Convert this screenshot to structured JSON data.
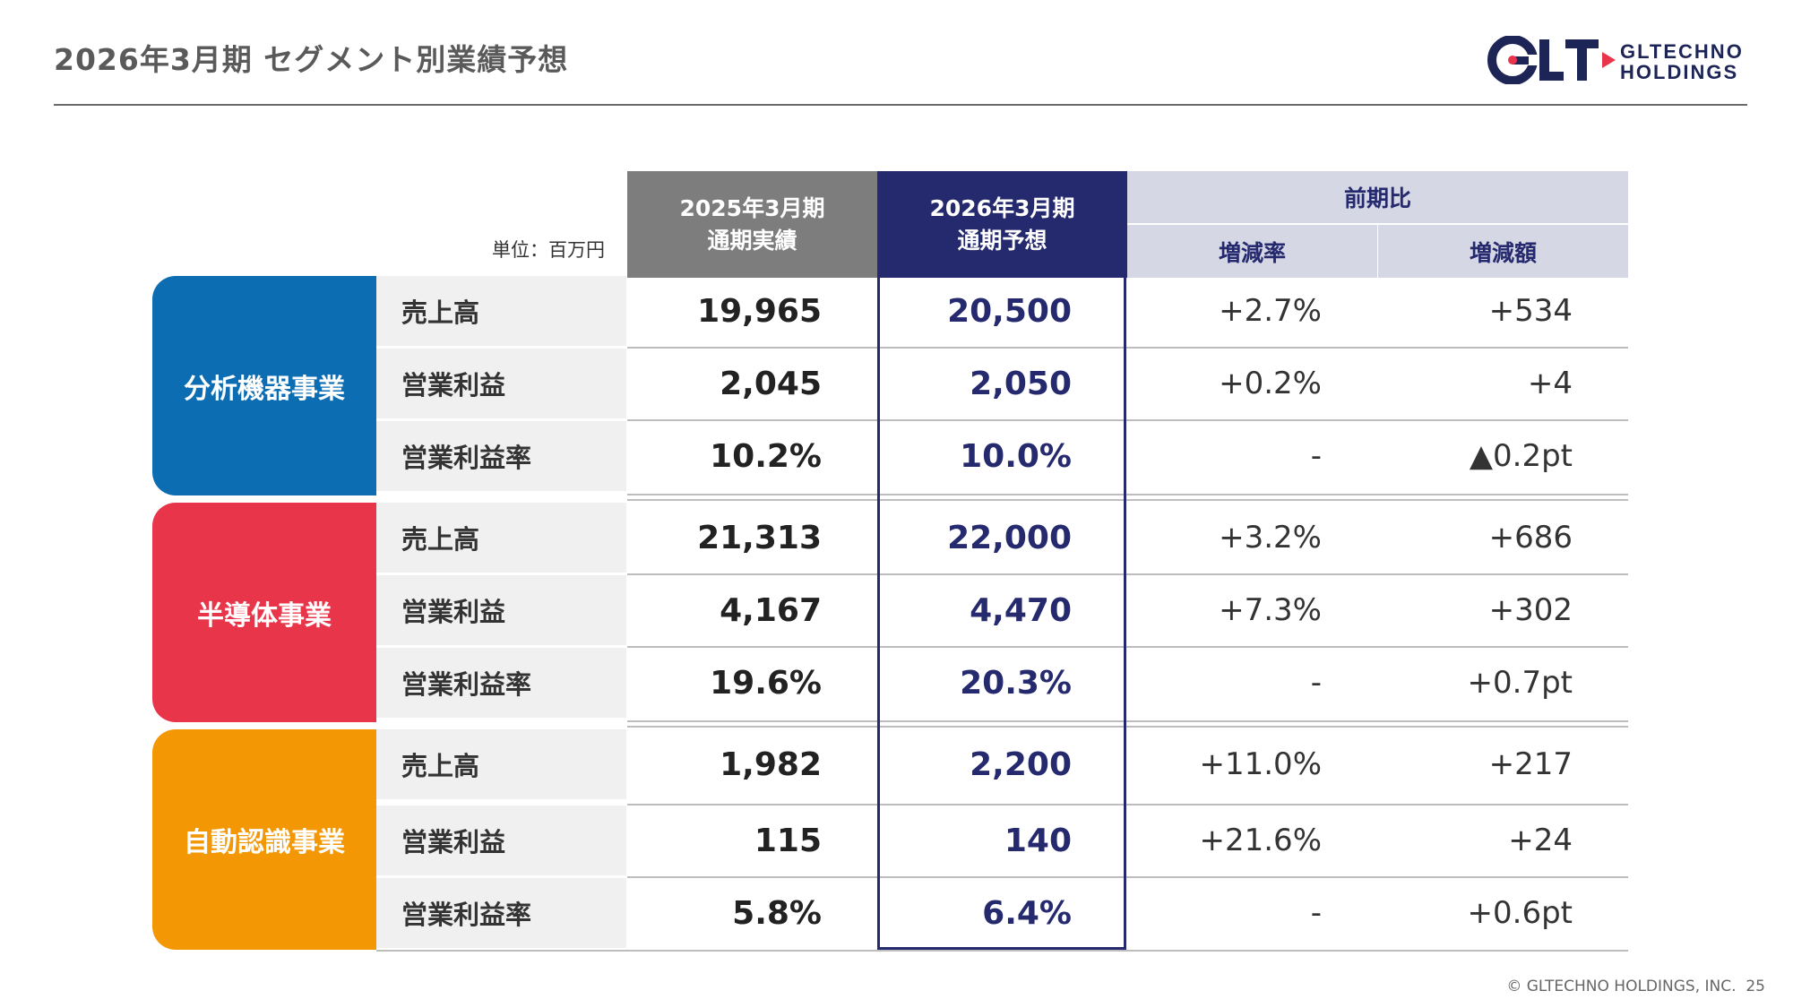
{
  "header": {
    "title": "2026年3月期  セグメント別業績予想",
    "logo": {
      "mark": "GLT",
      "name_line1": "GLTECHNO",
      "name_line2": "HOLDINGS"
    }
  },
  "table": {
    "unit": "単位：百万円",
    "columns": {
      "prev_line1": "2025年3月期",
      "prev_line2": "通期実績",
      "fc_line1": "2026年3月期",
      "fc_line2": "通期予想",
      "compare": "前期比",
      "rate": "増減率",
      "amount": "増減額"
    },
    "segments": [
      {
        "name": "分析機器事業",
        "color": "#0d6db3",
        "rows": [
          {
            "label": "売上高",
            "prev": "19,965",
            "forecast": "20,500",
            "rate": "+2.7%",
            "amount": "+534"
          },
          {
            "label": "営業利益",
            "prev": "2,045",
            "forecast": "2,050",
            "rate": "+0.2%",
            "amount": "+4"
          },
          {
            "label": "営業利益率",
            "prev": "10.2%",
            "forecast": "10.0%",
            "rate": "-",
            "amount": "▲0.2pt"
          }
        ]
      },
      {
        "name": "半導体事業",
        "color": "#e8354a",
        "rows": [
          {
            "label": "売上高",
            "prev": "21,313",
            "forecast": "22,000",
            "rate": "+3.2%",
            "amount": "+686"
          },
          {
            "label": "営業利益",
            "prev": "4,167",
            "forecast": "4,470",
            "rate": "+7.3%",
            "amount": "+302"
          },
          {
            "label": "営業利益率",
            "prev": "19.6%",
            "forecast": "20.3%",
            "rate": "-",
            "amount": "+0.7pt"
          }
        ]
      },
      {
        "name": "自動認識事業",
        "color": "#f39804",
        "rows": [
          {
            "label": "売上高",
            "prev": "1,982",
            "forecast": "2,200",
            "rate": "+11.0%",
            "amount": "+217"
          },
          {
            "label": "営業利益",
            "prev": "115",
            "forecast": "140",
            "rate": "+21.6%",
            "amount": "+24"
          },
          {
            "label": "営業利益率",
            "prev": "5.8%",
            "forecast": "6.4%",
            "rate": "-",
            "amount": "+0.6pt"
          }
        ]
      }
    ]
  },
  "footer": {
    "copyright": "© GLTECHNO HOLDINGS, INC.",
    "page": "25"
  }
}
